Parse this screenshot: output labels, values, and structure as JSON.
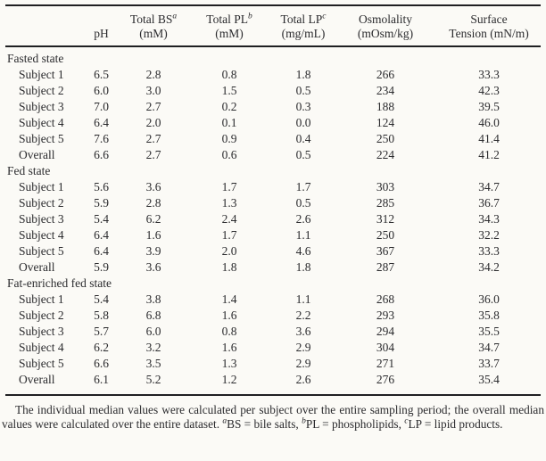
{
  "colors": {
    "background": "#fbfaf6",
    "text": "#2b2b2e",
    "rule": "#1f1f22"
  },
  "table": {
    "header": [
      {
        "top": "",
        "sup": "",
        "bottom": ""
      },
      {
        "top": "",
        "sup": "",
        "bottom": "pH"
      },
      {
        "top": "Total BS",
        "sup": "a",
        "bottom": "(mM)"
      },
      {
        "top": "Total PL",
        "sup": "b",
        "bottom": "(mM)"
      },
      {
        "top": "Total LP",
        "sup": "c",
        "bottom": "(mg/mL)"
      },
      {
        "top": "Osmolality",
        "sup": "",
        "bottom": "(mOsm/kg)"
      },
      {
        "top": "Surface",
        "sup": "",
        "bottom": "Tension (mN/m)"
      }
    ],
    "sections": [
      {
        "label": "Fasted state",
        "rows": [
          {
            "label": "Subject 1",
            "values": [
              "6.5",
              "2.8",
              "0.8",
              "1.8",
              "266",
              "33.3"
            ]
          },
          {
            "label": "Subject 2",
            "values": [
              "6.0",
              "3.0",
              "1.5",
              "0.5",
              "234",
              "42.3"
            ]
          },
          {
            "label": "Subject 3",
            "values": [
              "7.0",
              "2.7",
              "0.2",
              "0.3",
              "188",
              "39.5"
            ]
          },
          {
            "label": "Subject 4",
            "values": [
              "6.4",
              "2.0",
              "0.1",
              "0.0",
              "124",
              "46.0"
            ]
          },
          {
            "label": "Subject 5",
            "values": [
              "7.6",
              "2.7",
              "0.9",
              "0.4",
              "250",
              "41.4"
            ]
          },
          {
            "label": "Overall",
            "values": [
              "6.6",
              "2.7",
              "0.6",
              "0.5",
              "224",
              "41.2"
            ]
          }
        ]
      },
      {
        "label": "Fed state",
        "rows": [
          {
            "label": "Subject 1",
            "values": [
              "5.6",
              "3.6",
              "1.7",
              "1.7",
              "303",
              "34.7"
            ]
          },
          {
            "label": "Subject 2",
            "values": [
              "5.9",
              "2.8",
              "1.3",
              "0.5",
              "285",
              "36.7"
            ]
          },
          {
            "label": "Subject 3",
            "values": [
              "5.4",
              "6.2",
              "2.4",
              "2.6",
              "312",
              "34.3"
            ]
          },
          {
            "label": "Subject 4",
            "values": [
              "6.4",
              "1.6",
              "1.7",
              "1.1",
              "250",
              "32.2"
            ]
          },
          {
            "label": "Subject 5",
            "values": [
              "6.4",
              "3.9",
              "2.0",
              "4.6",
              "367",
              "33.3"
            ]
          },
          {
            "label": "Overall",
            "values": [
              "5.9",
              "3.6",
              "1.8",
              "1.8",
              "287",
              "34.2"
            ]
          }
        ]
      },
      {
        "label": "Fat-enriched fed state",
        "rows": [
          {
            "label": "Subject 1",
            "values": [
              "5.4",
              "3.8",
              "1.4",
              "1.1",
              "268",
              "36.0"
            ]
          },
          {
            "label": "Subject 2",
            "values": [
              "5.8",
              "6.8",
              "1.6",
              "2.2",
              "293",
              "35.8"
            ]
          },
          {
            "label": "Subject 3",
            "values": [
              "5.7",
              "6.0",
              "0.8",
              "3.6",
              "294",
              "35.5"
            ]
          },
          {
            "label": "Subject 4",
            "values": [
              "6.2",
              "3.2",
              "1.6",
              "2.9",
              "304",
              "34.7"
            ]
          },
          {
            "label": "Subject 5",
            "values": [
              "6.6",
              "3.5",
              "1.3",
              "2.9",
              "271",
              "33.7"
            ]
          },
          {
            "label": "Overall",
            "values": [
              "6.1",
              "5.2",
              "1.2",
              "2.6",
              "276",
              "35.4"
            ]
          }
        ]
      }
    ]
  },
  "footnote": {
    "parts": [
      {
        "text": "The individual median values were calculated per subject over the entire sampling period; the overall median values were calculated over the entire dataset. "
      },
      {
        "sup": "a"
      },
      {
        "text": "BS = bile salts, "
      },
      {
        "sup": "b"
      },
      {
        "text": "PL = phospholipids, "
      },
      {
        "sup": "c"
      },
      {
        "text": "LP = lipid products."
      }
    ]
  }
}
